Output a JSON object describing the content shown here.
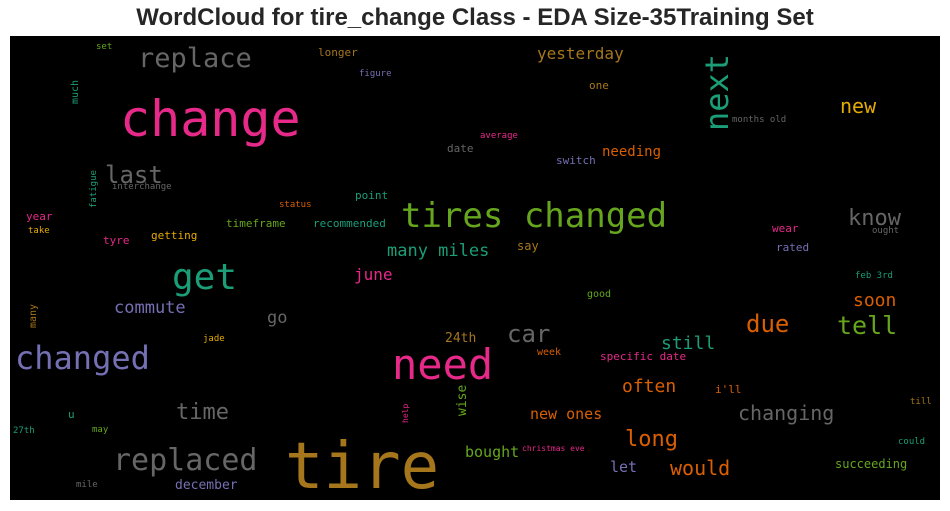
{
  "chart_title": "WordCloud for tire_change Class - EDA Size-35Training Set",
  "chart_data": {
    "type": "wordcloud",
    "background": "#000000",
    "words": [
      {
        "text": "tire",
        "color": "#a6761d"
      },
      {
        "text": "change",
        "color": "#e7298a"
      },
      {
        "text": "need",
        "color": "#e7298a"
      },
      {
        "text": "tires changed",
        "color": "#66a61e"
      },
      {
        "text": "get",
        "color": "#1b9e77"
      },
      {
        "text": "changed",
        "color": "#7570b3"
      },
      {
        "text": "next",
        "color": "#1b9e77"
      },
      {
        "text": "replaced",
        "color": "#666666"
      },
      {
        "text": "replace",
        "color": "#666666"
      },
      {
        "text": "last",
        "color": "#666666"
      },
      {
        "text": "car",
        "color": "#666666"
      },
      {
        "text": "know",
        "color": "#666666"
      },
      {
        "text": "due",
        "color": "#d95f02"
      },
      {
        "text": "tell",
        "color": "#66a61e"
      },
      {
        "text": "time",
        "color": "#666666"
      },
      {
        "text": "long",
        "color": "#d95f02"
      },
      {
        "text": "changing",
        "color": "#666666"
      },
      {
        "text": "new",
        "color": "#e6ab02"
      },
      {
        "text": "many miles",
        "color": "#1b9e77"
      },
      {
        "text": "would",
        "color": "#d95f02"
      },
      {
        "text": "often",
        "color": "#d95f02"
      },
      {
        "text": "commute",
        "color": "#7570b3"
      },
      {
        "text": "soon",
        "color": "#d95f02"
      },
      {
        "text": "still",
        "color": "#1b9e77"
      },
      {
        "text": "yesterday",
        "color": "#a6761d"
      },
      {
        "text": "go",
        "color": "#666666"
      },
      {
        "text": "june",
        "color": "#e7298a"
      },
      {
        "text": "new ones",
        "color": "#d95f02"
      },
      {
        "text": "bought",
        "color": "#66a61e"
      },
      {
        "text": "needing",
        "color": "#d95f02"
      },
      {
        "text": "let",
        "color": "#7570b3"
      },
      {
        "text": "december",
        "color": "#7570b3"
      },
      {
        "text": "24th",
        "color": "#a6761d"
      },
      {
        "text": "wise",
        "color": "#66a61e"
      },
      {
        "text": "succeeding",
        "color": "#66a61e"
      },
      {
        "text": "say",
        "color": "#a6761d"
      },
      {
        "text": "timeframe",
        "color": "#66a61e"
      },
      {
        "text": "recommended",
        "color": "#1b9e77"
      },
      {
        "text": "point",
        "color": "#1b9e77"
      },
      {
        "text": "switch",
        "color": "#7570b3"
      },
      {
        "text": "date",
        "color": "#666666"
      },
      {
        "text": "getting",
        "color": "#e6ab02"
      },
      {
        "text": "tyre",
        "color": "#e7298a"
      },
      {
        "text": "year",
        "color": "#e7298a"
      },
      {
        "text": "longer",
        "color": "#a6761d"
      },
      {
        "text": "one",
        "color": "#a6761d"
      },
      {
        "text": "much",
        "color": "#1b9e77"
      },
      {
        "text": "week",
        "color": "#d95f02"
      },
      {
        "text": "i'll",
        "color": "#d95f02"
      },
      {
        "text": "specific date",
        "color": "#e7298a"
      },
      {
        "text": "wear",
        "color": "#e7298a"
      },
      {
        "text": "rated",
        "color": "#7570b3"
      },
      {
        "text": "good",
        "color": "#66a61e"
      },
      {
        "text": "many",
        "color": "#a6761d"
      },
      {
        "text": "u",
        "color": "#1b9e77"
      },
      {
        "text": "may",
        "color": "#66a61e"
      },
      {
        "text": "set",
        "color": "#66a61e"
      },
      {
        "text": "figure",
        "color": "#7570b3"
      },
      {
        "text": "average",
        "color": "#e7298a"
      },
      {
        "text": "months old",
        "color": "#666666"
      },
      {
        "text": "fatigue",
        "color": "#1b9e77"
      },
      {
        "text": "interchange",
        "color": "#666666"
      },
      {
        "text": "status",
        "color": "#d95f02"
      },
      {
        "text": "take",
        "color": "#e6ab02"
      },
      {
        "text": "ought",
        "color": "#666666"
      },
      {
        "text": "feb 3rd",
        "color": "#1b9e77"
      },
      {
        "text": "jade",
        "color": "#e6ab02"
      },
      {
        "text": "help",
        "color": "#e7298a"
      },
      {
        "text": "christmas eve",
        "color": "#e7298a"
      },
      {
        "text": "till",
        "color": "#a6761d"
      },
      {
        "text": "could",
        "color": "#1b9e77"
      },
      {
        "text": "27th",
        "color": "#1b9e77"
      },
      {
        "text": "mile",
        "color": "#666666"
      }
    ]
  }
}
